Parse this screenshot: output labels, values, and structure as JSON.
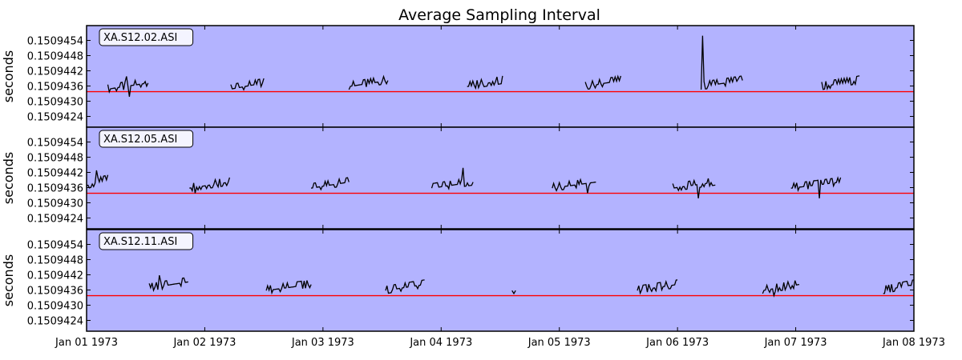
{
  "chart_data": {
    "type": "line",
    "title": "Average Sampling Interval",
    "ylabel": "seconds",
    "x_ticks": [
      "Jan 01 1973",
      "Jan 02 1973",
      "Jan 03 1973",
      "Jan 04 1973",
      "Jan 05 1973",
      "Jan 06 1973",
      "Jan 07 1973",
      "Jan 08 1973"
    ],
    "xlim_days": [
      0,
      7
    ],
    "y_ticks": [
      "0.1509454",
      "0.1509448",
      "0.1509442",
      "0.1509436",
      "0.1509430",
      "0.1509424"
    ],
    "ylim": [
      0.150942,
      0.150946
    ],
    "reference_value": 0.1509434,
    "colors": {
      "background": "#b3b3ff",
      "series": "#000000",
      "reference": "#ff0000"
    },
    "panels": [
      {
        "station": "XA.S12.02.ASI",
        "segments": [
          {
            "start": 0.18,
            "end": 0.52,
            "base": 0.1509435,
            "step": 2e-07,
            "spikes": [
              [
                0.34,
                0.150944
              ],
              [
                0.36,
                0.1509432
              ],
              [
                0.49,
                0.1509438
              ]
            ]
          },
          {
            "start": 1.22,
            "end": 1.5,
            "base": 0.1509435,
            "step": 2e-07,
            "spikes": []
          },
          {
            "start": 2.22,
            "end": 2.55,
            "base": 0.1509436,
            "step": 2e-07,
            "spikes": []
          },
          {
            "start": 3.22,
            "end": 3.52,
            "base": 0.1509436,
            "step": 2e-07,
            "spikes": [
              [
                3.44,
                0.1509438
              ]
            ]
          },
          {
            "start": 4.22,
            "end": 4.52,
            "base": 0.1509436,
            "step": 2e-07,
            "spikes": [
              [
                4.46,
                0.1509438
              ]
            ]
          },
          {
            "start": 5.2,
            "end": 5.55,
            "base": 0.1509436,
            "step": 2e-07,
            "spikes": [
              [
                5.21,
                0.1509456
              ],
              [
                5.51,
                0.1509439
              ]
            ]
          },
          {
            "start": 6.22,
            "end": 6.54,
            "base": 0.1509436,
            "step": 2e-07,
            "spikes": [
              [
                6.52,
                0.150944
              ]
            ]
          }
        ]
      },
      {
        "station": "XA.S12.05.ASI",
        "segments": [
          {
            "start": 0.0,
            "end": 0.18,
            "base": 0.1509437,
            "step": 2e-07,
            "spikes": [
              [
                0.09,
                0.1509443
              ]
            ]
          },
          {
            "start": 0.87,
            "end": 1.21,
            "base": 0.1509436,
            "step": 2e-07,
            "spikes": [
              [
                0.92,
                0.1509434
              ]
            ]
          },
          {
            "start": 1.9,
            "end": 2.22,
            "base": 0.1509436,
            "step": 2e-07,
            "spikes": []
          },
          {
            "start": 2.92,
            "end": 3.27,
            "base": 0.1509436,
            "step": 2e-07,
            "spikes": [
              [
                3.18,
                0.1509444
              ]
            ]
          },
          {
            "start": 3.94,
            "end": 4.31,
            "base": 0.1509436,
            "step": 2e-07,
            "spikes": [
              [
                4.24,
                0.1509434
              ]
            ]
          },
          {
            "start": 4.96,
            "end": 5.32,
            "base": 0.1509436,
            "step": 2e-07,
            "spikes": [
              [
                5.18,
                0.1509432
              ]
            ]
          },
          {
            "start": 5.96,
            "end": 6.38,
            "base": 0.1509436,
            "step": 2e-07,
            "spikes": [
              [
                6.2,
                0.1509432
              ]
            ]
          }
        ]
      },
      {
        "station": "XA.S12.11.ASI",
        "segments": [
          {
            "start": 0.53,
            "end": 0.86,
            "base": 0.1509437,
            "step": 2e-07,
            "spikes": [
              [
                0.61,
                0.1509442
              ]
            ]
          },
          {
            "start": 1.52,
            "end": 1.9,
            "base": 0.1509436,
            "step": 2e-07,
            "spikes": [
              [
                1.7,
                0.1509439
              ]
            ]
          },
          {
            "start": 2.53,
            "end": 2.86,
            "base": 0.1509436,
            "step": 2e-07,
            "spikes": [
              [
                2.7,
                0.1509439
              ]
            ]
          },
          {
            "start": 3.6,
            "end": 3.63,
            "base": 0.1509436,
            "step": 0.0,
            "spikes": []
          },
          {
            "start": 4.66,
            "end": 5.0,
            "base": 0.1509436,
            "step": 2e-07,
            "spikes": []
          },
          {
            "start": 5.72,
            "end": 6.03,
            "base": 0.1509436,
            "step": 2e-07,
            "spikes": [
              [
                5.82,
                0.1509434
              ]
            ]
          },
          {
            "start": 6.74,
            "end": 7.0,
            "base": 0.1509436,
            "step": 2e-07,
            "spikes": [
              [
                6.98,
                0.1509438
              ]
            ]
          }
        ]
      }
    ]
  }
}
